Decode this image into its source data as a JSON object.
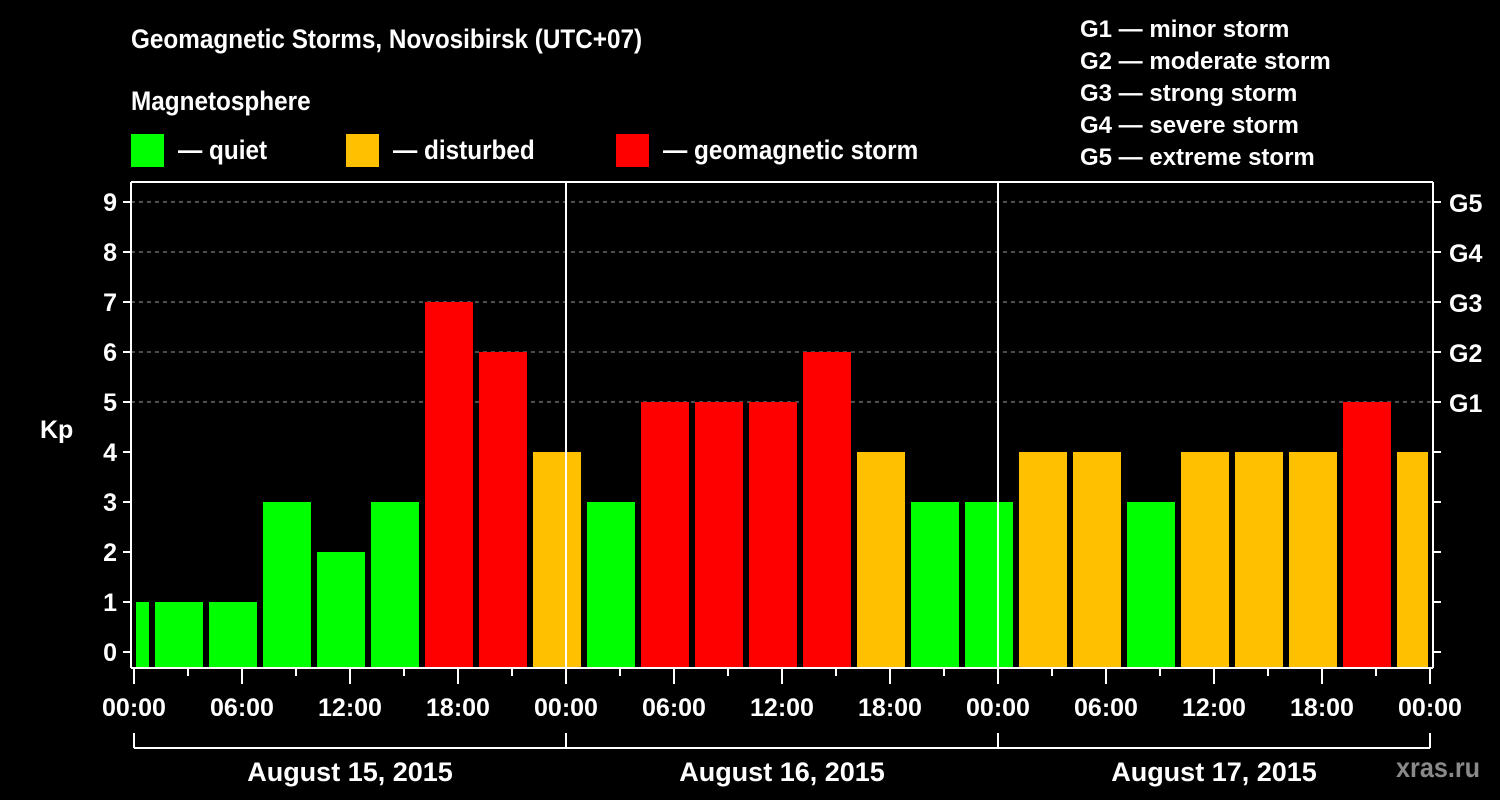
{
  "header": {
    "title": "Geomagnetic Storms, Novosibirsk (UTC+07)",
    "subtitle": "Magnetosphere"
  },
  "legend": [
    {
      "label": "— quiet",
      "color": "#00ff00"
    },
    {
      "label": "— disturbed",
      "color": "#ffc000"
    },
    {
      "label": "— geomagnetic storm",
      "color": "#ff0000"
    }
  ],
  "storm_scale": [
    "G1 — minor storm",
    "G2 — moderate storm",
    "G3 — strong storm",
    "G4 — severe storm",
    "G5 — extreme storm"
  ],
  "watermark": "xras.ru",
  "chart_data": {
    "type": "bar",
    "title": "Geomagnetic Storms, Novosibirsk (UTC+07)",
    "subtitle": "Magnetosphere",
    "ylabel": "Kp",
    "xlabel": "",
    "ylim": [
      0,
      9
    ],
    "yticks": [
      0,
      1,
      2,
      3,
      4,
      5,
      6,
      7,
      8,
      9
    ],
    "right_axis_labels": {
      "5": "G1",
      "6": "G2",
      "7": "G3",
      "8": "G4",
      "9": "G5"
    },
    "grid": "dashed horizontal lines at Kp 5-9",
    "xtick_labels": [
      "00:00",
      "06:00",
      "12:00",
      "18:00",
      "00:00",
      "06:00",
      "12:00",
      "18:00",
      "00:00",
      "06:00",
      "12:00",
      "18:00",
      "00:00"
    ],
    "day_labels": [
      "August 15, 2015",
      "August 16, 2015",
      "August 17, 2015"
    ],
    "categories": [
      "Aug15 00-01",
      "Aug15 01-04",
      "Aug15 04-07",
      "Aug15 07-10",
      "Aug15 10-13",
      "Aug15 13-16",
      "Aug15 16-19",
      "Aug15 19-22",
      "Aug15 22-01",
      "Aug16 01-04",
      "Aug16 04-07",
      "Aug16 07-10",
      "Aug16 10-13",
      "Aug16 13-16",
      "Aug16 16-19",
      "Aug16 19-22",
      "Aug16 22-01",
      "Aug17 01-04",
      "Aug17 04-07",
      "Aug17 07-10",
      "Aug17 10-13",
      "Aug17 13-16",
      "Aug17 16-19",
      "Aug17 19-22",
      "Aug17 22-24"
    ],
    "values": [
      1,
      1,
      1,
      3,
      2,
      3,
      7,
      6,
      4,
      3,
      5,
      5,
      5,
      6,
      4,
      3,
      3,
      4,
      4,
      3,
      4,
      4,
      4,
      5,
      4
    ],
    "status": [
      "quiet",
      "quiet",
      "quiet",
      "quiet",
      "quiet",
      "quiet",
      "storm",
      "storm",
      "disturbed",
      "quiet",
      "storm",
      "storm",
      "storm",
      "storm",
      "disturbed",
      "quiet",
      "quiet",
      "disturbed",
      "disturbed",
      "quiet",
      "disturbed",
      "disturbed",
      "disturbed",
      "storm",
      "disturbed"
    ],
    "colors": {
      "quiet": "#00ff00",
      "disturbed": "#ffc000",
      "storm": "#ff0000"
    },
    "legend": [
      "quiet",
      "disturbed",
      "geomagnetic storm"
    ]
  }
}
